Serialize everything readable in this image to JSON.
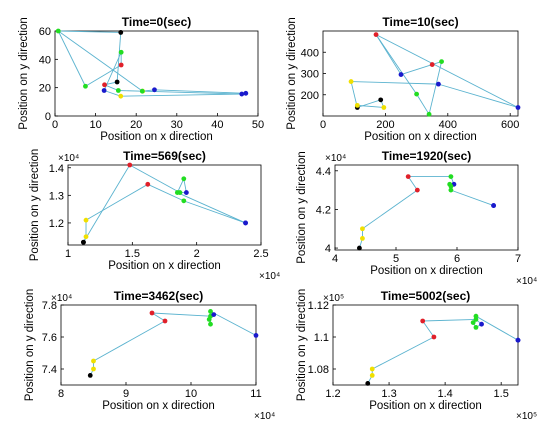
{
  "chart_data": [
    {
      "type": "line",
      "title": "Time=0(sec)",
      "xlabel": "Position on x direction",
      "ylabel": "Position on y direction",
      "xlim": [
        0,
        50
      ],
      "ylim": [
        0,
        60
      ],
      "xticks": [
        0,
        10,
        20,
        30,
        40,
        50
      ],
      "xtick_labels": [
        "0",
        "10",
        "20",
        "30",
        "40",
        "50"
      ],
      "yticks": [
        0,
        20,
        40,
        60
      ],
      "ytick_labels": [
        "0",
        "20",
        "40",
        "60"
      ],
      "x_multiplier": "",
      "y_multiplier": "",
      "segments": [
        [
          0,
          2
        ],
        [
          2,
          3
        ],
        [
          3,
          4
        ],
        [
          4,
          5
        ],
        [
          5,
          8
        ],
        [
          8,
          6
        ],
        [
          6,
          7
        ],
        [
          7,
          0
        ],
        [
          0,
          1
        ],
        [
          1,
          9
        ],
        [
          9,
          10
        ],
        [
          10,
          11
        ],
        [
          11,
          12
        ],
        [
          12,
          13
        ],
        [
          13,
          14
        ]
      ],
      "points": [
        {
          "x": 0.8,
          "y": 60,
          "color": "green"
        },
        {
          "x": 16.2,
          "y": 59,
          "color": "black"
        },
        {
          "x": 7.5,
          "y": 21,
          "color": "green"
        },
        {
          "x": 16.3,
          "y": 36,
          "color": "red"
        },
        {
          "x": 16.3,
          "y": 45,
          "color": "green"
        },
        {
          "x": 12.1,
          "y": 18,
          "color": "blue"
        },
        {
          "x": 46,
          "y": 15.5,
          "color": "blue"
        },
        {
          "x": 21.6,
          "y": 17.5,
          "color": "yellow"
        },
        {
          "x": 16.2,
          "y": 14,
          "color": "yellow"
        },
        {
          "x": 15.3,
          "y": 24,
          "color": "black"
        },
        {
          "x": 12.2,
          "y": 22,
          "color": "red"
        },
        {
          "x": 15.6,
          "y": 18,
          "color": "green"
        },
        {
          "x": 21.5,
          "y": 17.5,
          "color": "green"
        },
        {
          "x": 24.5,
          "y": 18.5,
          "color": "blue"
        },
        {
          "x": 47,
          "y": 16,
          "color": "blue"
        }
      ]
    },
    {
      "type": "line",
      "title": "Time=10(sec)",
      "xlabel": "Position on x direction",
      "ylabel": "Position on y direction",
      "xlim": [
        0,
        625
      ],
      "ylim": [
        100,
        500
      ],
      "xticks": [
        0,
        200,
        400,
        600
      ],
      "xtick_labels": [
        "0",
        "200",
        "400",
        "600"
      ],
      "yticks": [
        200,
        300,
        400
      ],
      "ytick_labels": [
        "200",
        "300",
        "400"
      ],
      "x_multiplier": "",
      "y_multiplier": "",
      "segments": [
        [
          0,
          1
        ],
        [
          1,
          2
        ],
        [
          2,
          3
        ],
        [
          3,
          4
        ],
        [
          4,
          5
        ],
        [
          5,
          0
        ],
        [
          0,
          6
        ],
        [
          6,
          7
        ],
        [
          7,
          8
        ],
        [
          8,
          9
        ],
        [
          9,
          10
        ],
        [
          10,
          11
        ],
        [
          11,
          12
        ]
      ],
      "points": [
        {
          "x": 170,
          "y": 483,
          "color": "red"
        },
        {
          "x": 300,
          "y": 203,
          "color": "green"
        },
        {
          "x": 340,
          "y": 108,
          "color": "green"
        },
        {
          "x": 380,
          "y": 356,
          "color": "green"
        },
        {
          "x": 350,
          "y": 342,
          "color": "red"
        },
        {
          "x": 250,
          "y": 295,
          "color": "blue"
        },
        {
          "x": 625,
          "y": 140,
          "color": "blue"
        },
        {
          "x": 370,
          "y": 250,
          "color": "blue"
        },
        {
          "x": 90,
          "y": 262,
          "color": "yellow"
        },
        {
          "x": 110,
          "y": 140,
          "color": "black"
        },
        {
          "x": 185,
          "y": 176,
          "color": "black"
        },
        {
          "x": 195,
          "y": 140,
          "color": "yellow"
        },
        {
          "x": 110,
          "y": 150,
          "color": "yellow"
        }
      ]
    },
    {
      "type": "line",
      "title": "Time=569(sec)",
      "xlabel": "Position on x direction",
      "ylabel": "Position on y direction",
      "xlim": [
        1.0,
        2.5
      ],
      "ylim": [
        1.12,
        1.41
      ],
      "xticks": [
        1.0,
        1.5,
        2.0,
        2.5
      ],
      "xtick_labels": [
        "1",
        "1.5",
        "2",
        "2.5"
      ],
      "yticks": [
        1.2,
        1.3,
        1.4
      ],
      "ytick_labels": [
        "1.2",
        "1.3",
        "1.4"
      ],
      "x_multiplier": "×10⁴",
      "y_multiplier": "×10⁴",
      "segments": [
        [
          0,
          1
        ],
        [
          1,
          2
        ],
        [
          2,
          3
        ],
        [
          3,
          4
        ],
        [
          4,
          5
        ],
        [
          0,
          6
        ],
        [
          6,
          7
        ],
        [
          7,
          8
        ],
        [
          8,
          9
        ],
        [
          9,
          10
        ],
        [
          10,
          11
        ],
        [
          11,
          12
        ]
      ],
      "points": [
        {
          "x": 1.12,
          "y": 1.13,
          "color": "black"
        },
        {
          "x": 1.14,
          "y": 1.15,
          "color": "yellow"
        },
        {
          "x": 1.14,
          "y": 1.21,
          "color": "yellow"
        },
        {
          "x": 1.62,
          "y": 1.34,
          "color": "red"
        },
        {
          "x": 1.9,
          "y": 1.28,
          "color": "green"
        },
        {
          "x": 2.38,
          "y": 1.2,
          "color": "blue"
        },
        {
          "x": 1.12,
          "y": 1.13,
          "color": "black"
        },
        {
          "x": 1.48,
          "y": 1.41,
          "color": "red"
        },
        {
          "x": 1.87,
          "y": 1.31,
          "color": "green"
        },
        {
          "x": 1.92,
          "y": 1.31,
          "color": "blue"
        },
        {
          "x": 1.9,
          "y": 1.36,
          "color": "green"
        },
        {
          "x": 1.85,
          "y": 1.31,
          "color": "green"
        },
        {
          "x": 2.38,
          "y": 1.2,
          "color": "blue"
        }
      ]
    },
    {
      "type": "line",
      "title": "Time=1920(sec)",
      "xlabel": "Position on x direction",
      "ylabel": "Position on y direction",
      "xlim": [
        4,
        7
      ],
      "ylim": [
        3.99,
        4.43
      ],
      "xticks": [
        4,
        5,
        6,
        7
      ],
      "xtick_labels": [
        "4",
        "5",
        "6",
        "7"
      ],
      "yticks": [
        4.0,
        4.2,
        4.4
      ],
      "ytick_labels": [
        "4",
        "4.2",
        "4.4"
      ],
      "x_multiplier": "×10⁴",
      "y_multiplier": "×10⁴",
      "segments": [
        [
          0,
          1
        ],
        [
          1,
          2
        ],
        [
          2,
          3
        ],
        [
          3,
          4
        ],
        [
          4,
          5
        ],
        [
          5,
          6
        ],
        [
          6,
          7
        ],
        [
          7,
          8
        ],
        [
          8,
          9
        ],
        [
          9,
          10
        ],
        [
          10,
          11
        ]
      ],
      "points": [
        {
          "x": 4.4,
          "y": 4.0,
          "color": "black"
        },
        {
          "x": 4.45,
          "y": 4.05,
          "color": "yellow"
        },
        {
          "x": 4.45,
          "y": 4.1,
          "color": "yellow"
        },
        {
          "x": 5.35,
          "y": 4.3,
          "color": "red"
        },
        {
          "x": 5.2,
          "y": 4.37,
          "color": "red"
        },
        {
          "x": 5.9,
          "y": 4.37,
          "color": "green"
        },
        {
          "x": 5.95,
          "y": 4.33,
          "color": "blue"
        },
        {
          "x": 5.9,
          "y": 4.32,
          "color": "green"
        },
        {
          "x": 5.88,
          "y": 4.33,
          "color": "green"
        },
        {
          "x": 5.9,
          "y": 4.3,
          "color": "green"
        },
        {
          "x": 6.6,
          "y": 4.22,
          "color": "blue"
        },
        {
          "x": 6.6,
          "y": 4.22,
          "color": "blue"
        }
      ]
    },
    {
      "type": "line",
      "title": "Time=3462(sec)",
      "xlabel": "Position on x direction",
      "ylabel": "Position on y direction",
      "xlim": [
        8,
        11
      ],
      "ylim": [
        7.3,
        7.8
      ],
      "xticks": [
        8,
        9,
        10,
        11
      ],
      "xtick_labels": [
        "8",
        "9",
        "10",
        "11"
      ],
      "yticks": [
        7.4,
        7.6,
        7.8
      ],
      "ytick_labels": [
        "7.4",
        "7.6",
        "7.8"
      ],
      "x_multiplier": "×10⁴",
      "y_multiplier": "×10⁴",
      "segments": [
        [
          0,
          1
        ],
        [
          1,
          2
        ],
        [
          2,
          3
        ],
        [
          3,
          4
        ],
        [
          4,
          5
        ],
        [
          5,
          6
        ],
        [
          6,
          7
        ],
        [
          7,
          8
        ],
        [
          8,
          9
        ],
        [
          9,
          10
        ]
      ],
      "points": [
        {
          "x": 8.45,
          "y": 7.36,
          "color": "black"
        },
        {
          "x": 8.5,
          "y": 7.4,
          "color": "yellow"
        },
        {
          "x": 8.5,
          "y": 7.45,
          "color": "yellow"
        },
        {
          "x": 9.6,
          "y": 7.7,
          "color": "red"
        },
        {
          "x": 9.4,
          "y": 7.75,
          "color": "red"
        },
        {
          "x": 10.3,
          "y": 7.73,
          "color": "green"
        },
        {
          "x": 10.35,
          "y": 7.74,
          "color": "blue"
        },
        {
          "x": 10.28,
          "y": 7.71,
          "color": "green"
        },
        {
          "x": 10.3,
          "y": 7.68,
          "color": "green"
        },
        {
          "x": 10.3,
          "y": 7.76,
          "color": "green"
        },
        {
          "x": 11.0,
          "y": 7.61,
          "color": "blue"
        }
      ]
    },
    {
      "type": "line",
      "title": "Time=5002(sec)",
      "xlabel": "Position on x direction",
      "ylabel": "Position on y direction",
      "xlim": [
        1.2,
        1.53
      ],
      "ylim": [
        1.07,
        1.12
      ],
      "xticks": [
        1.2,
        1.3,
        1.4,
        1.5
      ],
      "xtick_labels": [
        "1.2",
        "1.3",
        "1.4",
        "1.5"
      ],
      "yticks": [
        1.08,
        1.1,
        1.12
      ],
      "ytick_labels": [
        "1.08",
        "1.1",
        "1.12"
      ],
      "x_multiplier": "×10⁵",
      "y_multiplier": "×10⁵",
      "segments": [
        [
          0,
          1
        ],
        [
          1,
          2
        ],
        [
          2,
          3
        ],
        [
          3,
          4
        ],
        [
          4,
          5
        ],
        [
          5,
          6
        ],
        [
          6,
          7
        ],
        [
          7,
          8
        ],
        [
          8,
          9
        ],
        [
          9,
          10
        ],
        [
          10,
          11
        ]
      ],
      "points": [
        {
          "x": 1.262,
          "y": 1.071,
          "color": "black"
        },
        {
          "x": 1.27,
          "y": 1.076,
          "color": "yellow"
        },
        {
          "x": 1.27,
          "y": 1.08,
          "color": "yellow"
        },
        {
          "x": 1.38,
          "y": 1.1,
          "color": "red"
        },
        {
          "x": 1.36,
          "y": 1.11,
          "color": "red"
        },
        {
          "x": 1.455,
          "y": 1.111,
          "color": "green"
        },
        {
          "x": 1.465,
          "y": 1.108,
          "color": "blue"
        },
        {
          "x": 1.455,
          "y": 1.106,
          "color": "green"
        },
        {
          "x": 1.45,
          "y": 1.109,
          "color": "green"
        },
        {
          "x": 1.455,
          "y": 1.113,
          "color": "green"
        },
        {
          "x": 1.53,
          "y": 1.098,
          "color": "blue"
        },
        {
          "x": 1.53,
          "y": 1.098,
          "color": "blue"
        }
      ]
    }
  ],
  "colors": {
    "line": "#5bb3cf",
    "red": "#e0202a",
    "green": "#22dd22",
    "blue": "#1a1acc",
    "yellow": "#f0e000",
    "black": "#000000",
    "axis": "#000000"
  }
}
